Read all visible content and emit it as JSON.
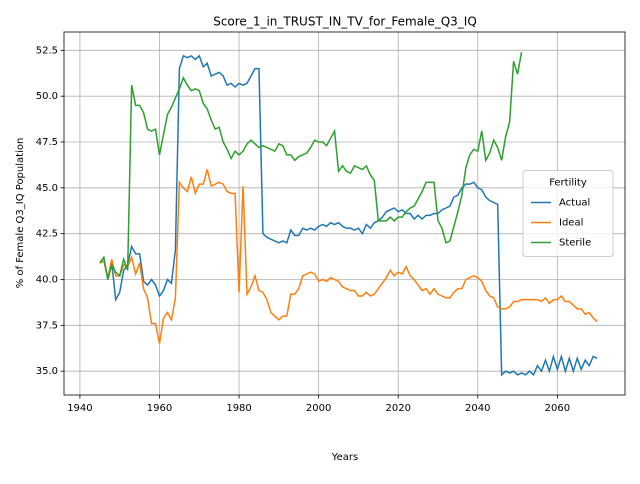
{
  "chart_data": {
    "type": "line",
    "title": "Score_1_in_TRUST_IN_TV_for_Female_Q3_IQ",
    "x_label": "Years",
    "y_label": "% of Female Q3_IQ Population",
    "legend_title": "Fertility",
    "legend": "center right",
    "grid": true,
    "xlim": [
      1936,
      2077
    ],
    "ylim": [
      33.7,
      53.5
    ],
    "xticks": [
      1940,
      1960,
      1980,
      2000,
      2020,
      2040,
      2060
    ],
    "yticks": [
      {
        "value": 35,
        "label": "35.0"
      },
      37.5,
      {
        "value": 40,
        "label": "40.0"
      },
      42.5,
      {
        "value": 45,
        "label": "45.0"
      },
      47.5,
      {
        "value": 50,
        "label": "50.0"
      },
      52.5
    ],
    "x": [
      1945,
      1946,
      1947,
      1948,
      1949,
      1950,
      1951,
      1952,
      1953,
      1954,
      1955,
      1956,
      1957,
      1958,
      1959,
      1960,
      1961,
      1962,
      1963,
      1964,
      1965,
      1966,
      1967,
      1968,
      1969,
      1970,
      1971,
      1972,
      1973,
      1974,
      1975,
      1976,
      1977,
      1978,
      1979,
      1980,
      1981,
      1982,
      1983,
      1984,
      1985,
      1986,
      1987,
      1988,
      1989,
      1990,
      1991,
      1992,
      1993,
      1994,
      1995,
      1996,
      1997,
      1998,
      1999,
      2000,
      2001,
      2002,
      2003,
      2004,
      2005,
      2006,
      2007,
      2008,
      2009,
      2010,
      2011,
      2012,
      2013,
      2014,
      2015,
      2016,
      2017,
      2018,
      2019,
      2020,
      2021,
      2022,
      2023,
      2024,
      2025,
      2026,
      2027,
      2028,
      2029,
      2030,
      2031,
      2032,
      2033,
      2034,
      2035,
      2036,
      2037,
      2038,
      2039,
      2040,
      2041,
      2042,
      2043,
      2044,
      2045,
      2046,
      2047,
      2048,
      2049,
      2050,
      2051,
      2052,
      2053,
      2054,
      2055,
      2056,
      2057,
      2058,
      2059,
      2060,
      2061,
      2062,
      2063,
      2064,
      2065,
      2066,
      2067,
      2068,
      2069,
      2070
    ],
    "series": [
      {
        "name": "Actual",
        "color": "#1f77b4",
        "values": [
          40.9,
          41.2,
          40.0,
          40.9,
          38.9,
          39.3,
          40.5,
          40.8,
          41.8,
          41.4,
          41.4,
          39.9,
          39.7,
          40.0,
          39.7,
          39.1,
          39.4,
          40.0,
          39.8,
          41.6,
          51.5,
          52.2,
          52.1,
          52.2,
          52.0,
          52.2,
          51.6,
          51.8,
          51.1,
          51.2,
          51.3,
          51.1,
          50.6,
          50.7,
          50.5,
          50.7,
          50.6,
          50.7,
          51.1,
          51.5,
          51.5,
          42.5,
          42.3,
          42.2,
          42.1,
          42.0,
          42.1,
          42.0,
          42.7,
          42.4,
          42.4,
          42.8,
          42.7,
          42.8,
          42.7,
          42.9,
          43.0,
          42.9,
          43.1,
          43.0,
          43.1,
          42.9,
          42.8,
          42.8,
          42.7,
          42.8,
          42.5,
          43.0,
          42.8,
          43.1,
          43.2,
          43.4,
          43.7,
          43.8,
          43.9,
          43.7,
          43.8,
          43.6,
          43.6,
          43.3,
          43.5,
          43.3,
          43.5,
          43.5,
          43.6,
          43.6,
          43.8,
          43.9,
          44.0,
          44.5,
          44.6,
          45.0,
          45.2,
          45.2,
          45.3,
          45.0,
          44.9,
          44.5,
          44.3,
          44.2,
          44.1,
          34.8,
          35.0,
          34.9,
          35.0,
          34.8,
          34.9,
          34.8,
          35.0,
          34.8,
          35.3,
          35.0,
          35.6,
          35.0,
          35.8,
          35.1,
          35.8,
          35.0,
          35.7,
          35.0,
          35.7,
          35.1,
          35.6,
          35.3,
          35.8,
          35.7
        ]
      },
      {
        "name": "Ideal",
        "color": "#ff7f0e",
        "values": [
          40.9,
          41.0,
          40.1,
          41.1,
          40.2,
          40.2,
          40.8,
          40.7,
          41.2,
          40.3,
          40.9,
          39.5,
          39.0,
          37.6,
          37.6,
          36.5,
          37.9,
          38.2,
          37.8,
          39.0,
          45.3,
          45.0,
          44.8,
          45.6,
          44.7,
          45.2,
          45.2,
          46.0,
          45.1,
          45.2,
          45.3,
          45.2,
          44.8,
          44.7,
          44.7,
          39.3,
          45.1,
          39.2,
          39.6,
          40.2,
          39.4,
          39.3,
          38.9,
          38.2,
          38.0,
          37.8,
          38.0,
          38.0,
          39.2,
          39.2,
          39.5,
          40.2,
          40.3,
          40.4,
          40.3,
          39.9,
          40.0,
          39.9,
          40.1,
          40.0,
          39.9,
          39.6,
          39.5,
          39.4,
          39.4,
          39.1,
          39.1,
          39.3,
          39.1,
          39.2,
          39.5,
          39.8,
          40.1,
          40.5,
          40.2,
          40.4,
          40.3,
          40.7,
          40.2,
          40.0,
          39.7,
          39.4,
          39.5,
          39.2,
          39.5,
          39.2,
          39.1,
          39.0,
          39.0,
          39.3,
          39.5,
          39.5,
          40.0,
          40.1,
          40.2,
          40.1,
          39.9,
          39.4,
          39.1,
          39.0,
          38.5,
          38.4,
          38.4,
          38.5,
          38.8,
          38.8,
          38.9,
          38.9,
          38.9,
          38.9,
          38.9,
          38.8,
          39.0,
          38.7,
          38.9,
          38.9,
          39.1,
          38.8,
          38.8,
          38.6,
          38.4,
          38.4,
          38.1,
          38.2,
          37.9,
          37.7
        ]
      },
      {
        "name": "Sterile",
        "color": "#2ca02c",
        "values": [
          40.9,
          41.2,
          40.0,
          40.8,
          40.4,
          40.2,
          41.1,
          40.5,
          50.6,
          49.5,
          49.5,
          49.1,
          48.2,
          48.1,
          48.2,
          46.8,
          47.9,
          49.0,
          49.4,
          49.9,
          50.4,
          51.0,
          50.6,
          50.3,
          50.4,
          50.3,
          49.6,
          49.3,
          48.7,
          48.2,
          48.3,
          47.5,
          47.1,
          46.6,
          47.0,
          46.8,
          47.0,
          47.4,
          47.6,
          47.4,
          47.2,
          47.3,
          47.2,
          47.1,
          47.0,
          47.4,
          47.3,
          46.8,
          46.8,
          46.5,
          46.7,
          46.8,
          46.9,
          47.2,
          47.6,
          47.5,
          47.5,
          47.3,
          47.7,
          48.1,
          45.9,
          46.2,
          45.9,
          45.8,
          46.2,
          46.1,
          46.0,
          46.2,
          45.7,
          45.4,
          43.2,
          43.2,
          43.2,
          43.4,
          43.2,
          43.4,
          43.4,
          43.7,
          43.9,
          44.0,
          44.4,
          44.8,
          45.3,
          45.3,
          45.3,
          43.2,
          42.8,
          42.0,
          42.1,
          42.9,
          43.7,
          44.6,
          46.1,
          46.8,
          47.1,
          47.0,
          48.1,
          46.5,
          46.9,
          47.6,
          47.2,
          46.5,
          47.8,
          48.6,
          51.9,
          51.2,
          52.4,
          null,
          null,
          null,
          null,
          null,
          null,
          null,
          null,
          null,
          null,
          null,
          null,
          null,
          null,
          null,
          null,
          null,
          null,
          null
        ]
      }
    ]
  }
}
